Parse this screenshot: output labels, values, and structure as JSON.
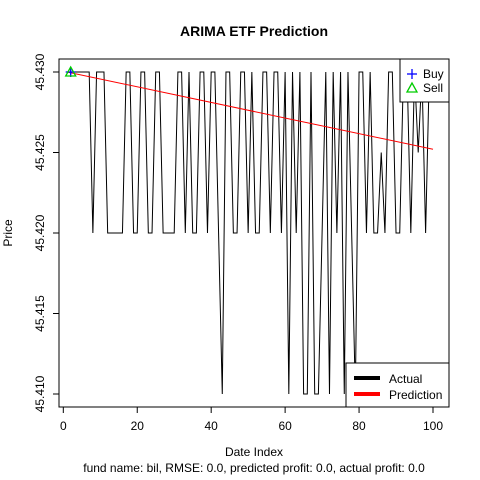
{
  "chart_data": {
    "type": "line",
    "title": "ARIMA ETF Prediction",
    "xlabel": "Date Index",
    "ylabel": "Price",
    "footnote": "fund name: bil, RMSE: 0.0, predicted profit: 0.0, actual profit: 0.0",
    "xlim": [
      1,
      100
    ],
    "ylim": [
      45.41,
      45.43
    ],
    "x_ticks": [
      "0",
      "20",
      "40",
      "60",
      "80",
      "100"
    ],
    "y_ticks": [
      "45.410",
      "45.415",
      "45.420",
      "45.425",
      "45.430"
    ],
    "colors": {
      "actual": "#000000",
      "prediction": "#ff0000",
      "buy": "#0000ff",
      "sell": "#00cc00"
    },
    "legend_lines": {
      "position": "bottom-right",
      "entries": [
        {
          "label": "Actual",
          "color": "#000000"
        },
        {
          "label": "Prediction",
          "color": "#ff0000"
        }
      ]
    },
    "legend_markers": {
      "position": "top-right",
      "entries": [
        {
          "label": "Buy",
          "symbol": "+",
          "color": "#0000ff"
        },
        {
          "label": "Sell",
          "symbol": "triangle",
          "color": "#00cc00"
        }
      ]
    },
    "signals": [
      {
        "type": "buy",
        "x": 2,
        "y": 45.43
      },
      {
        "type": "sell",
        "x": 2,
        "y": 45.43
      }
    ],
    "series": [
      {
        "name": "Actual",
        "x": [
          1,
          2,
          3,
          4,
          5,
          6,
          7,
          8,
          9,
          10,
          11,
          12,
          13,
          14,
          15,
          16,
          17,
          18,
          19,
          20,
          21,
          22,
          23,
          24,
          25,
          26,
          27,
          28,
          29,
          30,
          31,
          32,
          33,
          34,
          35,
          36,
          37,
          38,
          39,
          40,
          41,
          42,
          43,
          44,
          45,
          46,
          47,
          48,
          49,
          50,
          51,
          52,
          53,
          54,
          55,
          56,
          57,
          58,
          59,
          60,
          61,
          62,
          63,
          64,
          65,
          66,
          67,
          68,
          69,
          70,
          71,
          72,
          73,
          74,
          75,
          76,
          77,
          78,
          79,
          80,
          81,
          82,
          83,
          84,
          85,
          86,
          87,
          88,
          89,
          90,
          91,
          92,
          93,
          94,
          95,
          96,
          97,
          98,
          99,
          100
        ],
        "values": [
          45.43,
          45.43,
          45.43,
          45.43,
          45.43,
          45.43,
          45.43,
          45.42,
          45.43,
          45.43,
          45.43,
          45.42,
          45.42,
          45.42,
          45.42,
          45.42,
          45.43,
          45.43,
          45.42,
          45.42,
          45.43,
          45.43,
          45.42,
          45.42,
          45.43,
          45.43,
          45.42,
          45.42,
          45.42,
          45.42,
          45.43,
          45.43,
          45.42,
          45.43,
          45.42,
          45.42,
          45.43,
          45.43,
          45.42,
          45.43,
          45.43,
          45.42,
          45.41,
          45.43,
          45.43,
          45.42,
          45.42,
          45.43,
          45.43,
          45.42,
          45.43,
          45.42,
          45.42,
          45.43,
          45.43,
          45.42,
          45.43,
          45.43,
          45.42,
          45.43,
          45.41,
          45.43,
          45.42,
          45.43,
          45.41,
          45.41,
          45.43,
          45.41,
          45.41,
          45.42,
          45.43,
          45.41,
          45.43,
          45.42,
          45.43,
          45.41,
          45.43,
          45.42,
          45.41,
          45.43,
          45.43,
          45.42,
          45.43,
          45.42,
          45.42,
          45.425,
          45.42,
          45.43,
          45.43,
          45.42,
          45.42,
          45.43,
          45.43,
          45.42,
          45.43,
          45.425,
          45.43,
          45.42,
          45.43,
          45.43
        ]
      },
      {
        "name": "Prediction",
        "x": [
          1,
          100
        ],
        "values": [
          45.43,
          45.4252
        ]
      }
    ]
  }
}
